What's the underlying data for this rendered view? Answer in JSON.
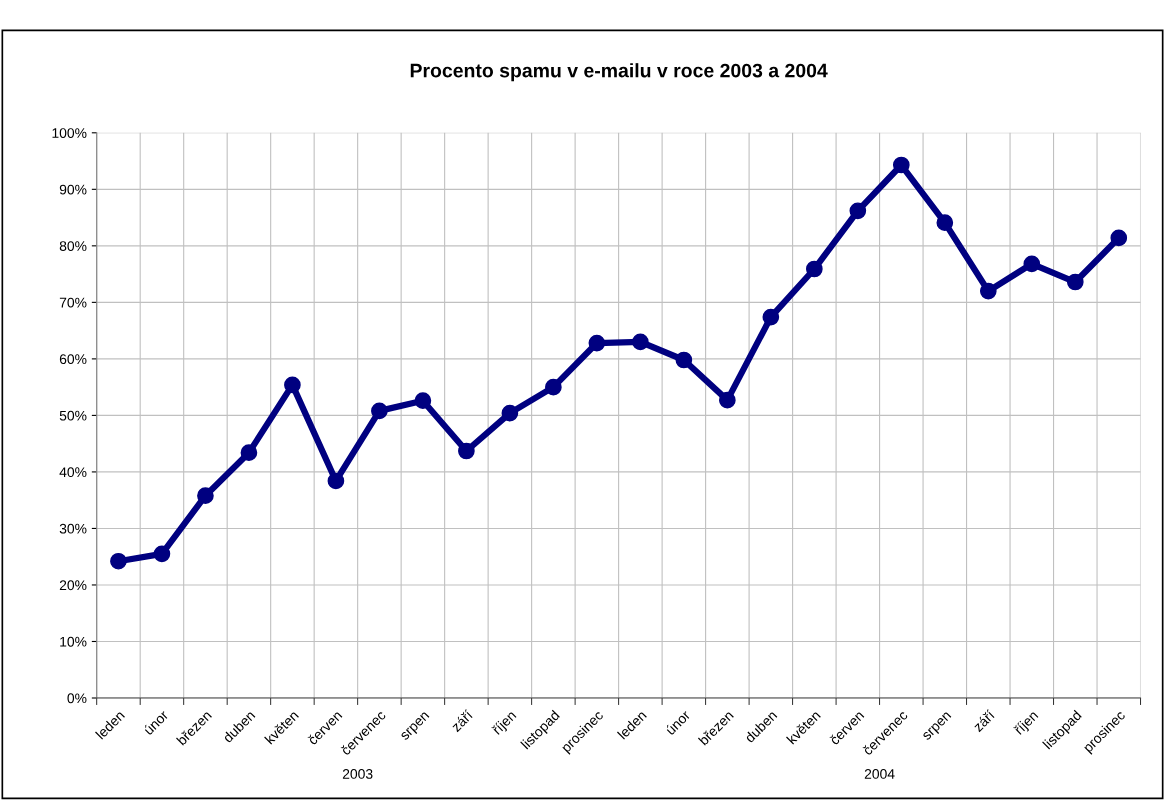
{
  "chart_data": {
    "type": "line",
    "title": "Procento spamu v e-mailu v roce 2003 a 2004",
    "categories": [
      "leden",
      "únor",
      "březen",
      "duben",
      "květen",
      "červen",
      "červenec",
      "srpen",
      "září",
      "říjen",
      "listopad",
      "prosinec",
      "leden",
      "únor",
      "březen",
      "duben",
      "květen",
      "červen",
      "červenec",
      "srpen",
      "září",
      "říjen",
      "listopad",
      "prosinec"
    ],
    "series": [
      {
        "color": "#000080",
        "values": [
          24.2,
          25.5,
          35.8,
          43.4,
          55.4,
          38.4,
          50.8,
          52.6,
          43.7,
          50.4,
          55.0,
          62.8,
          63.0,
          59.8,
          52.7,
          67.4,
          75.9,
          86.2,
          94.3,
          84.1,
          72.0,
          76.8,
          73.6,
          81.4
        ]
      }
    ],
    "ylim": [
      0,
      100
    ],
    "yticks": [
      {
        "value": 0,
        "label": "0%"
      },
      {
        "value": 10,
        "label": "10%"
      },
      {
        "value": 20,
        "label": "20%"
      },
      {
        "value": 30,
        "label": "30%"
      },
      {
        "value": 40,
        "label": "40%"
      },
      {
        "value": 50,
        "label": "50%"
      },
      {
        "value": 60,
        "label": "60%"
      },
      {
        "value": 70,
        "label": "70%"
      },
      {
        "value": 80,
        "label": "80%"
      },
      {
        "value": 90,
        "label": "90%"
      },
      {
        "value": 100,
        "label": "100%"
      }
    ],
    "annotations": [
      "2003",
      "2004"
    ],
    "grid": true,
    "marker": "circle",
    "line_style": "solid"
  }
}
